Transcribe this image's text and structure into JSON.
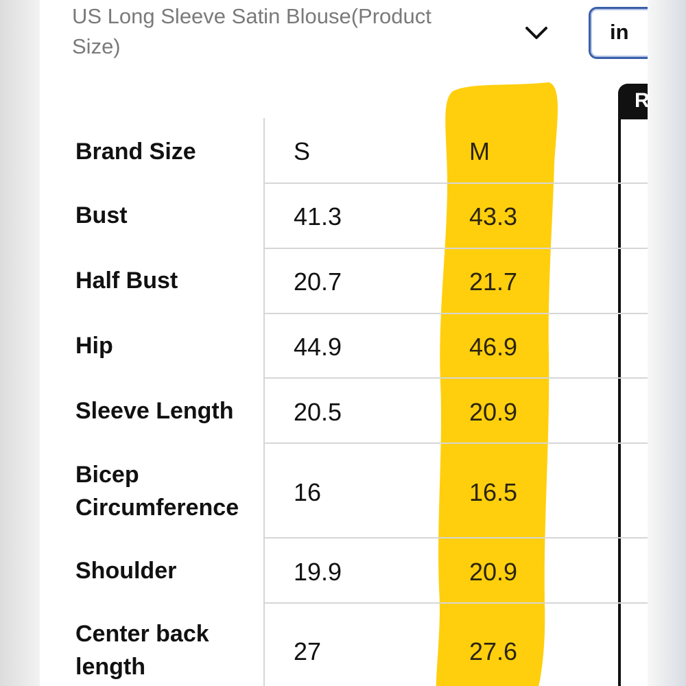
{
  "header": {
    "title": "US Long Sleeve Satin Blouse(Product Size)",
    "unit_label": "in",
    "right_panel_label": "R"
  },
  "table": {
    "columns": [
      "S",
      "M"
    ],
    "highlighted_column": "M",
    "highlight_color": "#ffcc00",
    "rows": [
      {
        "label": "Brand Size",
        "s": "S",
        "m": "M"
      },
      {
        "label": "Bust",
        "s": "41.3",
        "m": "43.3"
      },
      {
        "label": "Half Bust",
        "s": "20.7",
        "m": "21.7"
      },
      {
        "label": "Hip",
        "s": "44.9",
        "m": "46.9"
      },
      {
        "label": "Sleeve Length",
        "s": "20.5",
        "m": "20.9"
      },
      {
        "label": "Bicep Circumference",
        "s": "16",
        "m": "16.5"
      },
      {
        "label": "Shoulder",
        "s": "19.9",
        "m": "20.9"
      },
      {
        "label": "Center back length",
        "s": "27",
        "m": "27.6"
      }
    ]
  },
  "icons": {
    "dropdown": "chevron-down-icon"
  }
}
